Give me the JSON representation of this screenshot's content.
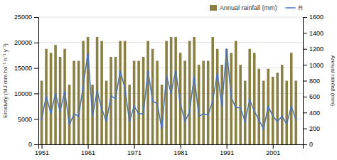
{
  "chart_data": {
    "type": "bar",
    "x": [
      1951,
      1952,
      1953,
      1954,
      1955,
      1956,
      1957,
      1958,
      1959,
      1960,
      1961,
      1962,
      1963,
      1964,
      1965,
      1966,
      1967,
      1968,
      1969,
      1970,
      1971,
      1972,
      1973,
      1974,
      1975,
      1976,
      1977,
      1978,
      1979,
      1980,
      1981,
      1982,
      1983,
      1984,
      1985,
      1986,
      1987,
      1988,
      1989,
      1990,
      1991,
      1992,
      1993,
      1994,
      1995,
      1996,
      1997,
      1998,
      1999,
      2000,
      2001,
      2002,
      2003,
      2004,
      2005,
      2006
    ],
    "xlim": [
      1950.3,
      2007.5
    ],
    "xticks": [
      1951,
      1961,
      1971,
      1981,
      1991,
      2001
    ],
    "ylabel": "Erosivity (MJ mm ha⁻¹ h⁻¹ y⁻¹)",
    "y2label": "Annual rainfall (mm)",
    "ylim": [
      0,
      25000
    ],
    "yticks": [
      0,
      5000,
      10000,
      15000,
      20000,
      25000
    ],
    "y2lim": [
      0,
      1600
    ],
    "y2ticks": [
      0,
      200,
      400,
      600,
      800,
      1000,
      1200,
      1400,
      1600
    ],
    "series": [
      {
        "name": "Annual rainfall (mm)",
        "type": "bar",
        "axis": "y2",
        "color": "#8B8040",
        "values": [
          800,
          1200,
          1150,
          1250,
          1100,
          1200,
          750,
          1050,
          1050,
          1300,
          1350,
          750,
          1350,
          1300,
          800,
          1100,
          1100,
          1300,
          1300,
          750,
          1050,
          1050,
          1100,
          1300,
          1200,
          1050,
          750,
          1300,
          1350,
          1350,
          1150,
          1050,
          1300,
          1350,
          1000,
          1050,
          1050,
          1350,
          1200,
          1000,
          1200,
          1150,
          1300,
          1000,
          800,
          1200,
          1150,
          950,
          800,
          950,
          850,
          900,
          1000,
          800,
          1150,
          800
        ]
      },
      {
        "name": "R",
        "type": "line",
        "color": "#4472C4",
        "values": [
          4800,
          9500,
          6000,
          10000,
          6500,
          10500,
          3800,
          6000,
          5500,
          11500,
          18000,
          5500,
          10500,
          7000,
          4500,
          9500,
          9000,
          14500,
          11000,
          4500,
          7500,
          6000,
          6000,
          14500,
          8500,
          8000,
          3000,
          13500,
          10000,
          14500,
          8000,
          4500,
          6500,
          13500,
          5500,
          6000,
          5800,
          8500,
          14000,
          7500,
          18800,
          9200,
          7200,
          7200,
          4500,
          8800,
          6500,
          4800,
          3000,
          7500,
          5500,
          4500,
          5500,
          4000,
          7500,
          4800
        ]
      }
    ],
    "grid": true,
    "legend": "top-right"
  }
}
